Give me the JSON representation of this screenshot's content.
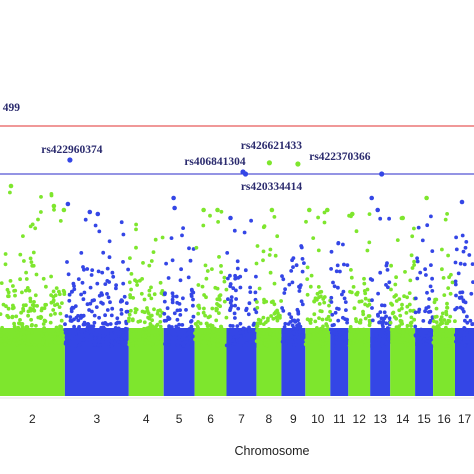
{
  "chart_data": {
    "type": "scatter",
    "subtype": "manhattan",
    "title": "",
    "xlabel": "Chromosome",
    "ylabel": "",
    "ylim": [
      0,
      7.6
    ],
    "colors": {
      "odd": "#3446e6",
      "even": "#7ee62d"
    },
    "visible_chromosomes": [
      {
        "label": "2",
        "start": 0,
        "end": 130,
        "color": "even",
        "max": 4.9
      },
      {
        "label": "3",
        "start": 130,
        "end": 258,
        "color": "odd",
        "max": 4.3
      },
      {
        "label": "4",
        "start": 258,
        "end": 328,
        "color": "even",
        "max": 4.3
      },
      {
        "label": "5",
        "start": 328,
        "end": 390,
        "color": "odd",
        "max": 4.6
      },
      {
        "label": "6",
        "start": 390,
        "end": 454,
        "color": "even",
        "max": 4.3
      },
      {
        "label": "7",
        "start": 454,
        "end": 514,
        "color": "odd",
        "max": 4.2
      },
      {
        "label": "8",
        "start": 514,
        "end": 564,
        "color": "even",
        "max": 4.3
      },
      {
        "label": "9",
        "start": 564,
        "end": 612,
        "color": "odd",
        "max": 3.4
      },
      {
        "label": "10",
        "start": 612,
        "end": 662,
        "color": "even",
        "max": 4.3
      },
      {
        "label": "11",
        "start": 662,
        "end": 698,
        "color": "odd",
        "max": 3.6
      },
      {
        "label": "12",
        "start": 698,
        "end": 742,
        "color": "even",
        "max": 4.2
      },
      {
        "label": "13",
        "start": 742,
        "end": 782,
        "color": "odd",
        "max": 4.2
      },
      {
        "label": "14",
        "start": 782,
        "end": 832,
        "color": "even",
        "max": 4.3
      },
      {
        "label": "15",
        "start": 832,
        "end": 868,
        "color": "odd",
        "max": 4.2
      },
      {
        "label": "16",
        "start": 868,
        "end": 912,
        "color": "even",
        "max": 4.3
      },
      {
        "label": "17",
        "start": 912,
        "end": 950,
        "color": "odd",
        "max": 3.8
      }
    ],
    "thresholds": [
      {
        "name": "red",
        "value": 6.4,
        "color": "#e03030"
      },
      {
        "name": "blue",
        "value": 5.2,
        "color": "#2a2ac8"
      }
    ],
    "annotated_snps": [
      {
        "label": "499",
        "x": -10,
        "y": 6.9,
        "color": "even",
        "label_at": "left-above"
      },
      {
        "label": "rs422960374",
        "x": 140,
        "y": 5.55,
        "color": "odd"
      },
      {
        "label": "rs406841304",
        "x": 487,
        "y": 5.25,
        "color": "odd"
      },
      {
        "label": "rs426621433",
        "x": 540,
        "y": 5.48,
        "color": "even"
      },
      {
        "label": "rs422370366",
        "x": 597,
        "y": 5.45,
        "color": "even"
      },
      {
        "label": "rs420334414",
        "x": 492,
        "y": 5.2,
        "color": "odd",
        "label_at": "below"
      },
      {
        "label": "",
        "x": 765,
        "y": 5.2,
        "color": "odd"
      }
    ],
    "notable_points": [
      {
        "x": 22,
        "y": 4.9,
        "color": "even"
      },
      {
        "x": 108,
        "y": 4.4,
        "color": "even"
      },
      {
        "x": 128,
        "y": 4.3,
        "color": "even"
      },
      {
        "x": 136,
        "y": 4.45,
        "color": "odd"
      },
      {
        "x": 180,
        "y": 4.25,
        "color": "odd"
      },
      {
        "x": 196,
        "y": 4.2,
        "color": "odd"
      },
      {
        "x": 348,
        "y": 4.6,
        "color": "odd"
      },
      {
        "x": 350,
        "y": 4.35,
        "color": "odd"
      },
      {
        "x": 408,
        "y": 4.3,
        "color": "even"
      },
      {
        "x": 436,
        "y": 4.3,
        "color": "even"
      },
      {
        "x": 462,
        "y": 4.1,
        "color": "odd"
      },
      {
        "x": 545,
        "y": 4.3,
        "color": "even"
      },
      {
        "x": 620,
        "y": 4.3,
        "color": "even"
      },
      {
        "x": 656,
        "y": 4.3,
        "color": "even"
      },
      {
        "x": 706,
        "y": 4.2,
        "color": "even"
      },
      {
        "x": 745,
        "y": 4.6,
        "color": "odd"
      },
      {
        "x": 757,
        "y": 4.3,
        "color": "odd"
      },
      {
        "x": 807,
        "y": 4.1,
        "color": "even"
      },
      {
        "x": 855,
        "y": 4.6,
        "color": "even"
      },
      {
        "x": 926,
        "y": 4.5,
        "color": "odd"
      }
    ]
  }
}
